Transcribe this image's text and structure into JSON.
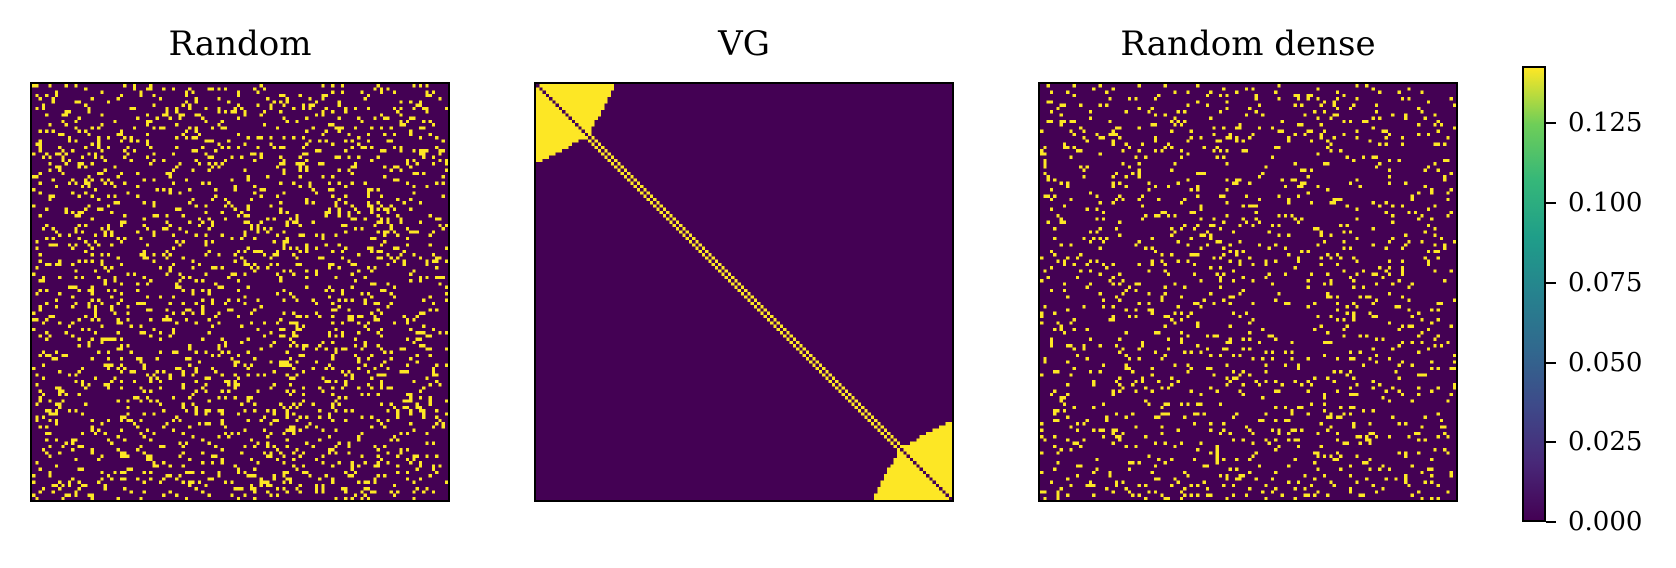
{
  "chart_data": [
    {
      "type": "heatmap",
      "title": "Random",
      "grid": false,
      "n": 128,
      "pattern": "sparse random binary matrix (approx. 13% nonzero)",
      "value_high": 0.1428,
      "value_low": 0.0
    },
    {
      "type": "heatmap",
      "title": "VG",
      "grid": false,
      "n": 128,
      "pattern": "diagonal band with triangular blocks in the top-left and bottom-right corners",
      "value_high": 0.1428,
      "value_low": 0.0
    },
    {
      "type": "heatmap",
      "title": "Random dense",
      "grid": false,
      "n": 128,
      "pattern": "sparse random binary matrix (approx. 9% nonzero)",
      "value_high": 0.1428,
      "value_low": 0.0
    }
  ],
  "colorbar": {
    "colormap": "viridis",
    "range": [
      0.0,
      0.143
    ],
    "ticks": [
      "0.000",
      "0.025",
      "0.050",
      "0.075",
      "0.100",
      "0.125"
    ],
    "tick_values": [
      0.0,
      0.025,
      0.05,
      0.075,
      0.1,
      0.125
    ]
  },
  "colors": {
    "low": "#440154",
    "high": "#fde725"
  }
}
